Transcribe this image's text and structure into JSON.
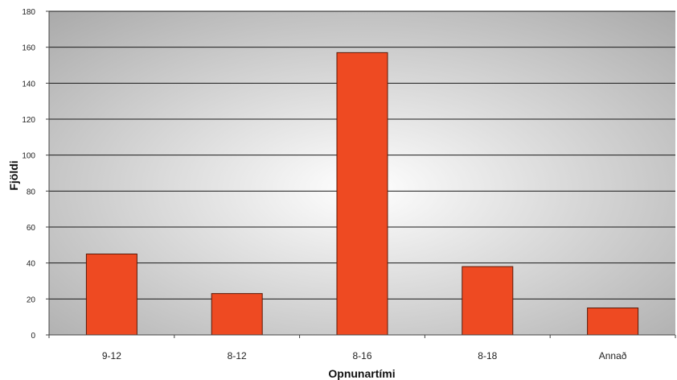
{
  "chart_data": {
    "type": "bar",
    "categories": [
      "9-12",
      "8-12",
      "8-16",
      "8-18",
      "Annað"
    ],
    "values": [
      45,
      23,
      157,
      38,
      15
    ],
    "xlabel": "Opnunartími",
    "ylabel": "Fjöldi",
    "ylim": [
      0,
      180
    ],
    "yticks": [
      0,
      20,
      40,
      60,
      80,
      100,
      120,
      140,
      160,
      180
    ],
    "grid": true,
    "colors": {
      "bar_fill": "#ee4a22",
      "bar_stroke": "#5a1a08",
      "plot_background_center": "#ffffff",
      "plot_background_edge": "#a9a9a9",
      "gridline": "#1a1a1a"
    }
  }
}
